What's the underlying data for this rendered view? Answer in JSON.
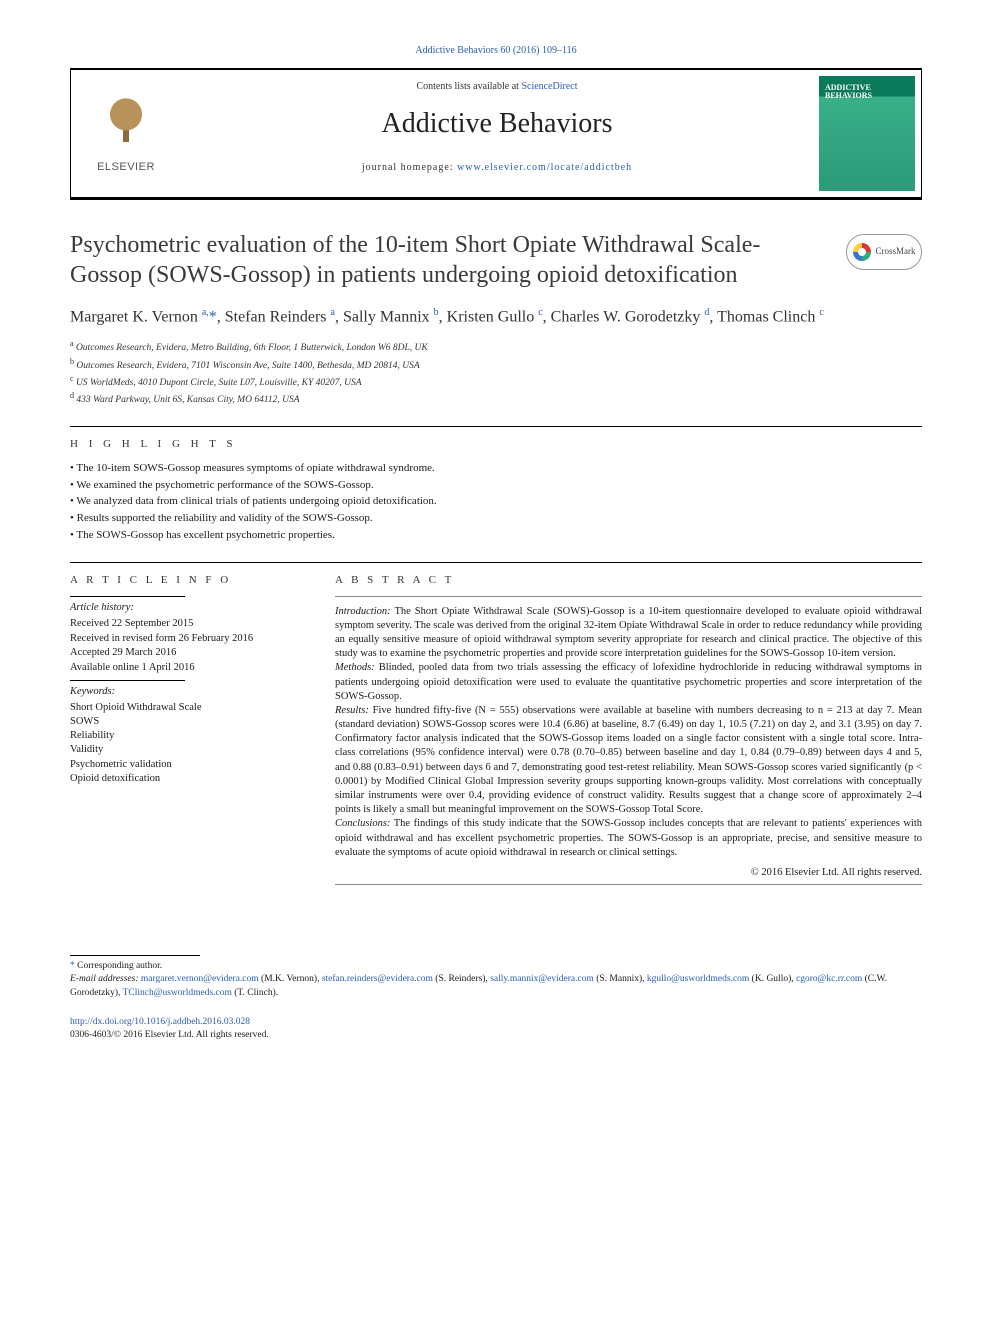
{
  "top_nav": {
    "label": "Addictive Behaviors 60 (2016) 109–116",
    "href": "#"
  },
  "header": {
    "contents_prefix": "Contents lists available at ",
    "contents_link": "ScienceDirect",
    "journal_name": "Addictive Behaviors",
    "homepage_prefix": "journal homepage: ",
    "homepage_url": "www.elsevier.com/locate/addictbeh",
    "publisher_name": "ELSEVIER",
    "cover_title": "ADDICTIVE BEHAVIORS",
    "cover_issue": ""
  },
  "crossmark_label": "CrossMark",
  "article": {
    "title": "Psychometric evaluation of the 10-item Short Opiate Withdrawal Scale-Gossop (SOWS-Gossop) in patients undergoing opioid detoxification",
    "authors_html": "Margaret K. Vernon <sup>a,</sup><span class='corr-star'>*</span>, Stefan Reinders <sup>a</sup>, Sally Mannix <sup>b</sup>, Kristen Gullo <sup>c</sup>, Charles W. Gorodetzky <sup>d</sup>, Thomas Clinch <sup>c</sup>",
    "affiliations": [
      "a  Outcomes Research, Evidera, Metro Building, 6th Floor, 1 Butterwick, London W6 8DL, UK",
      "b  Outcomes Research, Evidera, 7101 Wisconsin Ave, Suite 1400, Bethesda, MD 20814, USA",
      "c  US WorldMeds, 4010 Dupont Circle, Suite L07, Louisville, KY 40207, USA",
      "d  433 Ward Parkway, Unit 6S, Kansas City, MO 64112, USA"
    ]
  },
  "highlights": {
    "heading": "H I G H L I G H T S",
    "items": [
      "The 10-item SOWS-Gossop measures symptoms of opiate withdrawal syndrome.",
      "We examined the psychometric performance of the SOWS-Gossop.",
      "We analyzed data from clinical trials of patients undergoing opioid detoxification.",
      "Results supported the reliability and validity of the SOWS-Gossop.",
      "The SOWS-Gossop has excellent psychometric properties."
    ]
  },
  "article_info": {
    "heading": "A R T I C L E   I N F O",
    "history_label": "Article history:",
    "history": [
      "Received 22 September 2015",
      "Received in revised form 26 February 2016",
      "Accepted 29 March 2016",
      "Available online 1 April 2016"
    ],
    "keywords_label": "Keywords:",
    "keywords": [
      "Short Opioid Withdrawal Scale",
      "SOWS",
      "Reliability",
      "Validity",
      "Psychometric validation",
      "Opioid detoxification"
    ]
  },
  "abstract": {
    "heading": "A B S T R A C T",
    "intro_label": "Introduction:",
    "intro": " The Short Opiate Withdrawal Scale (SOWS)-Gossop is a 10-item questionnaire developed to evaluate opioid withdrawal symptom severity. The scale was derived from the original 32-item Opiate Withdrawal Scale in order to reduce redundancy while providing an equally sensitive measure of opioid withdrawal symptom severity appropriate for research and clinical practice. The objective of this study was to examine the psychometric properties and provide score interpretation guidelines for the SOWS-Gossop 10-item version.",
    "methods_label": "Methods:",
    "methods": " Blinded, pooled data from two trials assessing the efficacy of lofexidine hydrochloride in reducing withdrawal symptoms in patients undergoing opioid detoxification were used to evaluate the quantitative psychometric properties and score interpretation of the SOWS-Gossop.",
    "results_label": "Results:",
    "results": " Five hundred fifty-five (N = 555) observations were available at baseline with numbers decreasing to n = 213 at day 7. Mean (standard deviation) SOWS-Gossop scores were 10.4 (6.86) at baseline, 8.7 (6.49) on day 1, 10.5 (7.21) on day 2, and 3.1 (3.95) on day 7. Confirmatory factor analysis indicated that the SOWS-Gossop items loaded on a single factor consistent with a single total score. Intra-class correlations (95% confidence interval) were 0.78 (0.70–0.85) between baseline and day 1, 0.84 (0.79–0.89) between days 4 and 5, and 0.88 (0.83–0.91) between days 6 and 7, demonstrating good test-retest reliability. Mean SOWS-Gossop scores varied significantly (p < 0.0001) by Modified Clinical Global Impression severity groups supporting known-groups validity. Most correlations with conceptually similar instruments were over 0.4, providing evidence of construct validity. Results suggest that a change score of approximately 2–4 points is likely a small but meaningful improvement on the SOWS-Gossop Total Score.",
    "conclusions_label": "Conclusions:",
    "conclusions": " The findings of this study indicate that the SOWS-Gossop includes concepts that are relevant to patients' experiences with opioid withdrawal and has excellent psychometric properties. The SOWS-Gossop is an appropriate, precise, and sensitive measure to evaluate the symptoms of acute opioid withdrawal in research or clinical settings.",
    "copyright": "© 2016 Elsevier Ltd. All rights reserved."
  },
  "footnotes": {
    "corr": "Corresponding author.",
    "email_label": "E-mail addresses: ",
    "emails": [
      {
        "addr": "margaret.vernon@evidera.com",
        "who": "(M.K. Vernon)"
      },
      {
        "addr": "stefan.reinders@evidera.com",
        "who": "(S. Reinders)"
      },
      {
        "addr": "sally.mannix@evidera.com",
        "who": "(S. Mannix)"
      },
      {
        "addr": "kgullo@usworldmeds.com",
        "who": "(K. Gullo)"
      },
      {
        "addr": "cgoro@kc.rr.com",
        "who": "(C.W. Gorodetzky)"
      },
      {
        "addr": "TClinch@usworldmeds.com",
        "who": "(T. Clinch)"
      }
    ]
  },
  "doi": {
    "url": "http://dx.doi.org/10.1016/j.addbeh.2016.03.028",
    "issn_line": "0306-4603/© 2016 Elsevier Ltd. All rights reserved."
  },
  "colors": {
    "link": "#2a5db0",
    "text": "#1a1a1a",
    "rule": "#000000",
    "cover_top": "#0a7a5a",
    "cover_grad": "#2b9a77"
  },
  "typography": {
    "body_pt": 10.5,
    "title_pt": 24,
    "authors_pt": 16,
    "journal_pt": 28,
    "font_family": "Georgia / Times serif"
  }
}
